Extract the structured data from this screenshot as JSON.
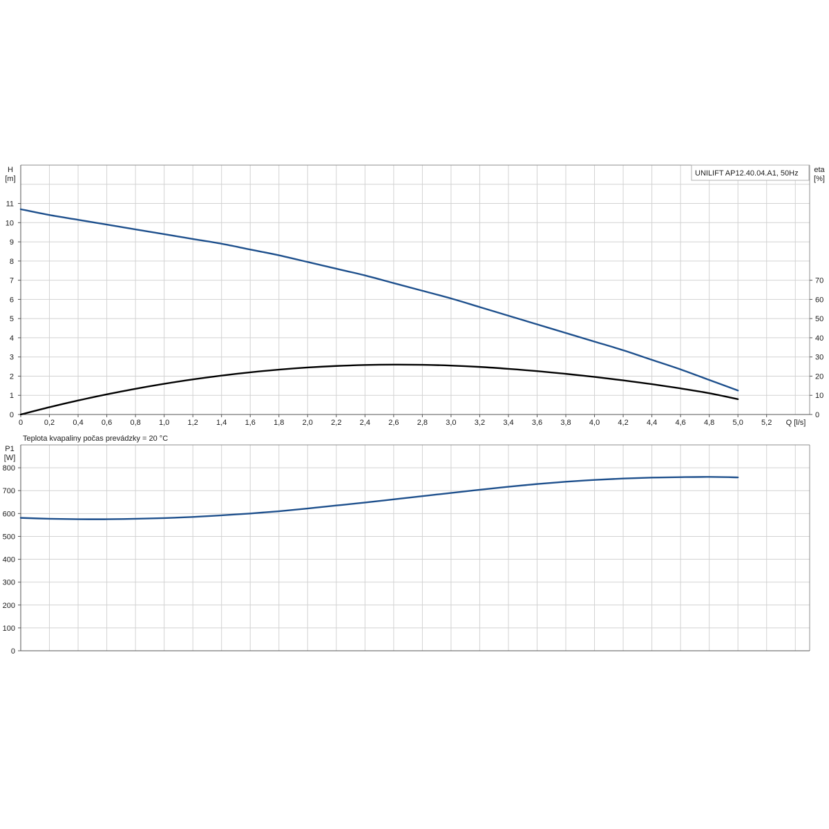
{
  "colors": {
    "head_curve": "#1d4f8c",
    "eta_curve": "#000000",
    "power_curve": "#1d4f8c",
    "grid": "#d2d2d2",
    "frame": "#8c8c8c"
  },
  "legend_box": {
    "text": "UNILIFT AP12.40.04.A1, 50Hz"
  },
  "note": "Teplota kvapaliny počas prevádzky = 20 °C",
  "chart_data": [
    {
      "type": "line",
      "panel": "head-efficiency",
      "grid": true,
      "x": {
        "label": "Q [l/s]",
        "lim": [
          0,
          5.5
        ],
        "ticks": [
          "0",
          "0,2",
          "0,4",
          "0,6",
          "0,8",
          "1,0",
          "1,2",
          "1,4",
          "1,6",
          "1,8",
          "2,0",
          "2,2",
          "2,4",
          "2,6",
          "2,8",
          "3,0",
          "3,2",
          "3,4",
          "3,6",
          "3,8",
          "4,0",
          "4,2",
          "4,4",
          "4,6",
          "4,8",
          "5,0",
          "5,2"
        ]
      },
      "y_left": {
        "label_line1": "H",
        "label_line2": "[m]",
        "lim": [
          0,
          13
        ],
        "ticks": [
          "0",
          "1",
          "2",
          "3",
          "4",
          "5",
          "6",
          "7",
          "8",
          "9",
          "10",
          "11"
        ]
      },
      "y_right": {
        "label_line1": "eta",
        "label_line2": "[%]",
        "lim": [
          0,
          130
        ],
        "ticks": [
          "0",
          "10",
          "20",
          "30",
          "40",
          "50",
          "60",
          "70"
        ]
      },
      "series": [
        {
          "id": "head",
          "axis": "left",
          "x": [
            0,
            0.2,
            0.4,
            0.6,
            0.8,
            1.0,
            1.2,
            1.4,
            1.6,
            1.8,
            2.0,
            2.2,
            2.4,
            2.6,
            2.8,
            3.0,
            3.2,
            3.4,
            3.6,
            3.8,
            4.0,
            4.2,
            4.4,
            4.6,
            4.8,
            5.0
          ],
          "y": [
            10.7,
            10.4,
            10.15,
            9.9,
            9.65,
            9.4,
            9.15,
            8.9,
            8.6,
            8.3,
            7.95,
            7.6,
            7.25,
            6.85,
            6.45,
            6.05,
            5.6,
            5.15,
            4.7,
            4.25,
            3.8,
            3.35,
            2.85,
            2.35,
            1.8,
            1.25
          ]
        },
        {
          "id": "eta",
          "axis": "right",
          "x": [
            0,
            0.2,
            0.4,
            0.6,
            0.8,
            1.0,
            1.2,
            1.4,
            1.6,
            1.8,
            2.0,
            2.2,
            2.4,
            2.6,
            2.8,
            3.0,
            3.2,
            3.4,
            3.6,
            3.8,
            4.0,
            4.2,
            4.4,
            4.6,
            4.8,
            5.0
          ],
          "y": [
            0,
            3.8,
            7.3,
            10.5,
            13.4,
            16.0,
            18.3,
            20.3,
            22.0,
            23.4,
            24.5,
            25.3,
            25.8,
            26.0,
            25.9,
            25.5,
            24.8,
            23.8,
            22.6,
            21.2,
            19.6,
            17.8,
            15.8,
            13.6,
            11.1,
            8.0
          ]
        }
      ]
    },
    {
      "type": "line",
      "panel": "power",
      "grid": true,
      "x": {
        "lim": [
          0,
          5.5
        ]
      },
      "y_left": {
        "label_line1": "P1",
        "label_line2": "[W]",
        "lim": [
          0,
          900
        ],
        "ticks": [
          "0",
          "100",
          "200",
          "300",
          "400",
          "500",
          "600",
          "700",
          "800"
        ]
      },
      "series": [
        {
          "id": "p1",
          "axis": "left",
          "x": [
            0,
            0.2,
            0.4,
            0.6,
            0.8,
            1.0,
            1.2,
            1.4,
            1.6,
            1.8,
            2.0,
            2.2,
            2.4,
            2.6,
            2.8,
            3.0,
            3.2,
            3.4,
            3.6,
            3.8,
            4.0,
            4.2,
            4.4,
            4.6,
            4.8,
            5.0
          ],
          "y": [
            581,
            577,
            575,
            575,
            577,
            580,
            585,
            592,
            600,
            610,
            622,
            635,
            648,
            662,
            676,
            690,
            704,
            717,
            729,
            739,
            747,
            753,
            757,
            759,
            760,
            758
          ]
        }
      ]
    }
  ]
}
